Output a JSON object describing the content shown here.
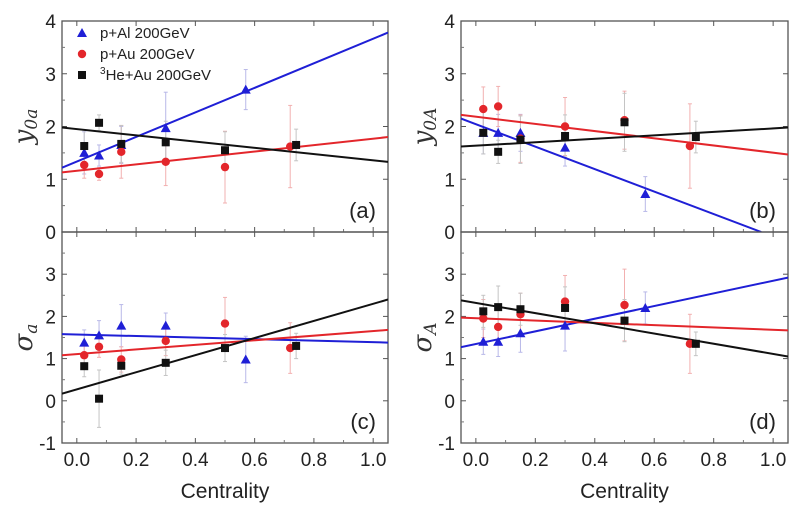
{
  "chart_data": {
    "type": "scatter",
    "legend": {
      "placement": "top-left of panel (a)",
      "entries": [
        {
          "series": "pAl",
          "label": "p+Al 200GeV",
          "marker": "triangle",
          "color": "#1f1fd6"
        },
        {
          "series": "pAu",
          "label": "p+Au 200GeV",
          "marker": "circle",
          "color": "#e3262b"
        },
        {
          "series": "HeAu",
          "label_sup": "3",
          "label": "He+Au 200GeV",
          "marker": "square",
          "color": "#111111"
        }
      ]
    },
    "xlabel": "Centrality",
    "xlim": [
      -0.05,
      1.05
    ],
    "xticks": [
      "0.0",
      "0.2",
      "0.4",
      "0.6",
      "0.8",
      "1.0"
    ],
    "xtick_values": [
      0,
      0.2,
      0.4,
      0.6,
      0.8,
      1.0
    ],
    "panels": [
      {
        "id": "a",
        "tag": "(a)",
        "ylabel": "y",
        "ylabel_sub": "0a",
        "ylim": [
          0,
          4
        ],
        "yticks": [
          "0",
          "1",
          "2",
          "3",
          "4"
        ],
        "ytick_values": [
          0,
          1,
          2,
          3,
          4
        ],
        "series": [
          {
            "key": "pAl",
            "x": [
              0.025,
              0.075,
              0.15,
              0.3,
              0.57
            ],
            "y": [
              1.5,
              1.45,
              1.65,
              1.97,
              2.7
            ],
            "err": [
              0.4,
              0.2,
              0.35,
              0.68,
              0.38
            ],
            "fit": [
              [
                -0.05,
                1.22
              ],
              [
                1.05,
                3.78
              ]
            ]
          },
          {
            "key": "pAu",
            "x": [
              0.025,
              0.075,
              0.15,
              0.3,
              0.5,
              0.72
            ],
            "y": [
              1.27,
              1.1,
              1.52,
              1.33,
              1.23,
              1.62
            ],
            "err": [
              0.25,
              0.12,
              0.5,
              0.45,
              0.68,
              0.78
            ],
            "fit": [
              [
                -0.05,
                1.13
              ],
              [
                1.05,
                1.8
              ]
            ]
          },
          {
            "key": "HeAu",
            "x": [
              0.025,
              0.075,
              0.15,
              0.3,
              0.5,
              0.74
            ],
            "y": [
              1.63,
              2.07,
              1.67,
              1.7,
              1.55,
              1.65
            ],
            "err": [
              0.3,
              0.15,
              0.35,
              0.4,
              0.35,
              0.3
            ],
            "fit": [
              [
                -0.05,
                1.98
              ],
              [
                1.05,
                1.33
              ]
            ]
          }
        ]
      },
      {
        "id": "b",
        "tag": "(b)",
        "ylabel": "y",
        "ylabel_sub": "0A",
        "ylim": [
          0,
          4
        ],
        "yticks": [
          "0",
          "1",
          "2",
          "3",
          "4"
        ],
        "ytick_values": [
          0,
          1,
          2,
          3,
          4
        ],
        "series": [
          {
            "key": "pAl",
            "x": [
              0.025,
              0.075,
              0.15,
              0.3,
              0.57
            ],
            "y": [
              1.88,
              1.88,
              1.88,
              1.6,
              0.72
            ],
            "err": [
              0.4,
              0.35,
              0.35,
              0.35,
              0.33
            ],
            "fit": [
              [
                -0.05,
                2.15
              ],
              [
                0.96,
                0
              ]
            ]
          },
          {
            "key": "pAu",
            "x": [
              0.025,
              0.075,
              0.15,
              0.3,
              0.5,
              0.72
            ],
            "y": [
              2.33,
              2.38,
              1.77,
              2.0,
              2.12,
              1.63
            ],
            "err": [
              0.42,
              0.38,
              0.45,
              0.55,
              0.55,
              0.8
            ],
            "fit": [
              [
                -0.05,
                2.22
              ],
              [
                1.05,
                1.47
              ]
            ]
          },
          {
            "key": "HeAu",
            "x": [
              0.025,
              0.075,
              0.15,
              0.3,
              0.5,
              0.74
            ],
            "y": [
              1.88,
              1.52,
              1.75,
              1.82,
              2.08,
              1.8
            ],
            "err": [
              0.4,
              0.22,
              0.45,
              0.4,
              0.55,
              0.3
            ],
            "fit": [
              [
                -0.05,
                1.62
              ],
              [
                1.05,
                1.98
              ]
            ]
          }
        ]
      },
      {
        "id": "c",
        "tag": "(c)",
        "ylabel": "σ",
        "ylabel_sub": "a",
        "ylim": [
          -1,
          4
        ],
        "yticks": [
          "-1",
          "0",
          "1",
          "2",
          "3"
        ],
        "ytick_values": [
          -1,
          0,
          1,
          2,
          3
        ],
        "series": [
          {
            "key": "pAl",
            "x": [
              0.025,
              0.075,
              0.15,
              0.3,
              0.57
            ],
            "y": [
              1.38,
              1.55,
              1.78,
              1.78,
              0.98
            ],
            "err": [
              0.3,
              0.35,
              0.5,
              0.3,
              0.55
            ],
            "fit": [
              [
                -0.05,
                1.58
              ],
              [
                1.05,
                1.38
              ]
            ]
          },
          {
            "key": "pAu",
            "x": [
              0.025,
              0.075,
              0.15,
              0.3,
              0.5,
              0.72
            ],
            "y": [
              1.08,
              1.28,
              0.98,
              1.42,
              1.83,
              1.25
            ],
            "err": [
              0.3,
              0.25,
              0.3,
              0.35,
              0.62,
              0.6
            ],
            "fit": [
              [
                -0.05,
                1.08
              ],
              [
                1.05,
                1.68
              ]
            ]
          },
          {
            "key": "HeAu",
            "x": [
              0.025,
              0.075,
              0.15,
              0.3,
              0.5,
              0.74
            ],
            "y": [
              0.82,
              0.05,
              0.83,
              0.9,
              1.25,
              1.3
            ],
            "err": [
              0.25,
              0.68,
              0.2,
              0.3,
              0.32,
              0.3
            ],
            "fit": [
              [
                -0.05,
                0.17
              ],
              [
                1.05,
                2.4
              ]
            ]
          }
        ]
      },
      {
        "id": "d",
        "tag": "(d)",
        "ylabel": "σ",
        "ylabel_sub": "A",
        "ylim": [
          -1,
          4
        ],
        "yticks": [
          "-1",
          "0",
          "1",
          "2",
          "3"
        ],
        "ytick_values": [
          -1,
          0,
          1,
          2,
          3
        ],
        "series": [
          {
            "key": "pAl",
            "x": [
              0.025,
              0.075,
              0.15,
              0.3,
              0.57
            ],
            "y": [
              1.4,
              1.4,
              1.6,
              1.78,
              2.2
            ],
            "err": [
              0.3,
              0.35,
              0.45,
              0.6,
              0.38
            ],
            "fit": [
              [
                -0.05,
                1.27
              ],
              [
                1.05,
                2.92
              ]
            ]
          },
          {
            "key": "pAu",
            "x": [
              0.025,
              0.075,
              0.15,
              0.3,
              0.5,
              0.72
            ],
            "y": [
              1.95,
              1.75,
              2.05,
              2.35,
              2.27,
              1.35
            ],
            "err": [
              0.45,
              0.4,
              0.5,
              0.62,
              0.85,
              0.7
            ],
            "fit": [
              [
                -0.05,
                1.97
              ],
              [
                1.05,
                1.67
              ]
            ]
          },
          {
            "key": "HeAu",
            "x": [
              0.025,
              0.075,
              0.15,
              0.3,
              0.5,
              0.74
            ],
            "y": [
              2.12,
              2.22,
              2.17,
              2.2,
              1.9,
              1.35
            ],
            "err": [
              0.38,
              0.5,
              0.38,
              0.5,
              0.5,
              0.28
            ],
            "fit": [
              [
                -0.05,
                2.38
              ],
              [
                1.05,
                1.05
              ]
            ]
          }
        ]
      }
    ]
  }
}
